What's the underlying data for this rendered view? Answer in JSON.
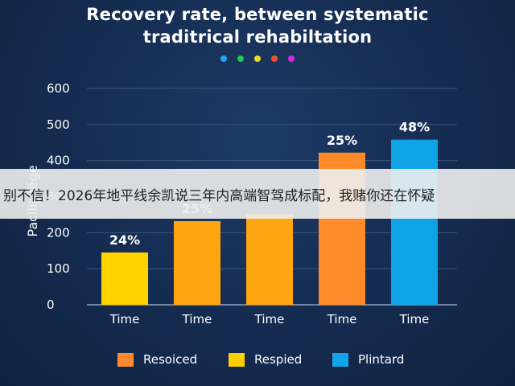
{
  "chart_data": {
    "type": "bar",
    "title_line1": "Recovery rate, between systematic",
    "title_line2": "traditrical rehabiltation",
    "ylabel": "Pacilit Tége",
    "ylim": [
      0,
      600
    ],
    "y_ticks": [
      0,
      100,
      200,
      300,
      400,
      500,
      600
    ],
    "y_tick_labels": [
      "0",
      "100",
      "200",
      "300",
      "400",
      "500",
      "600"
    ],
    "categories": [
      "Time",
      "Time",
      "Time",
      "Time",
      "Time"
    ],
    "values": [
      145,
      232,
      252,
      422,
      458
    ],
    "data_labels": [
      "24%",
      "25%",
      "",
      "25%",
      "48%"
    ],
    "bar_colors": [
      "#ffd200",
      "#ffa510",
      "#ffa510",
      "#ff8a2a",
      "#0fa3e6"
    ],
    "grid": true,
    "legend_position": "bottom",
    "legend": [
      {
        "label": "Resoiced",
        "color": "#ff8a30"
      },
      {
        "label": "Respied",
        "color": "#ffd000"
      },
      {
        "label": "Plintard",
        "color": "#15a4ea"
      }
    ],
    "palette_dots": [
      "#27a3f5",
      "#22c94e",
      "#e6dc1c",
      "#f2522a",
      "#d12ad6"
    ]
  },
  "overlay_banner": {
    "text": "别不信！2026年地平线余凯说三年内高端智驾成标配，我赌你还在怀疑"
  }
}
